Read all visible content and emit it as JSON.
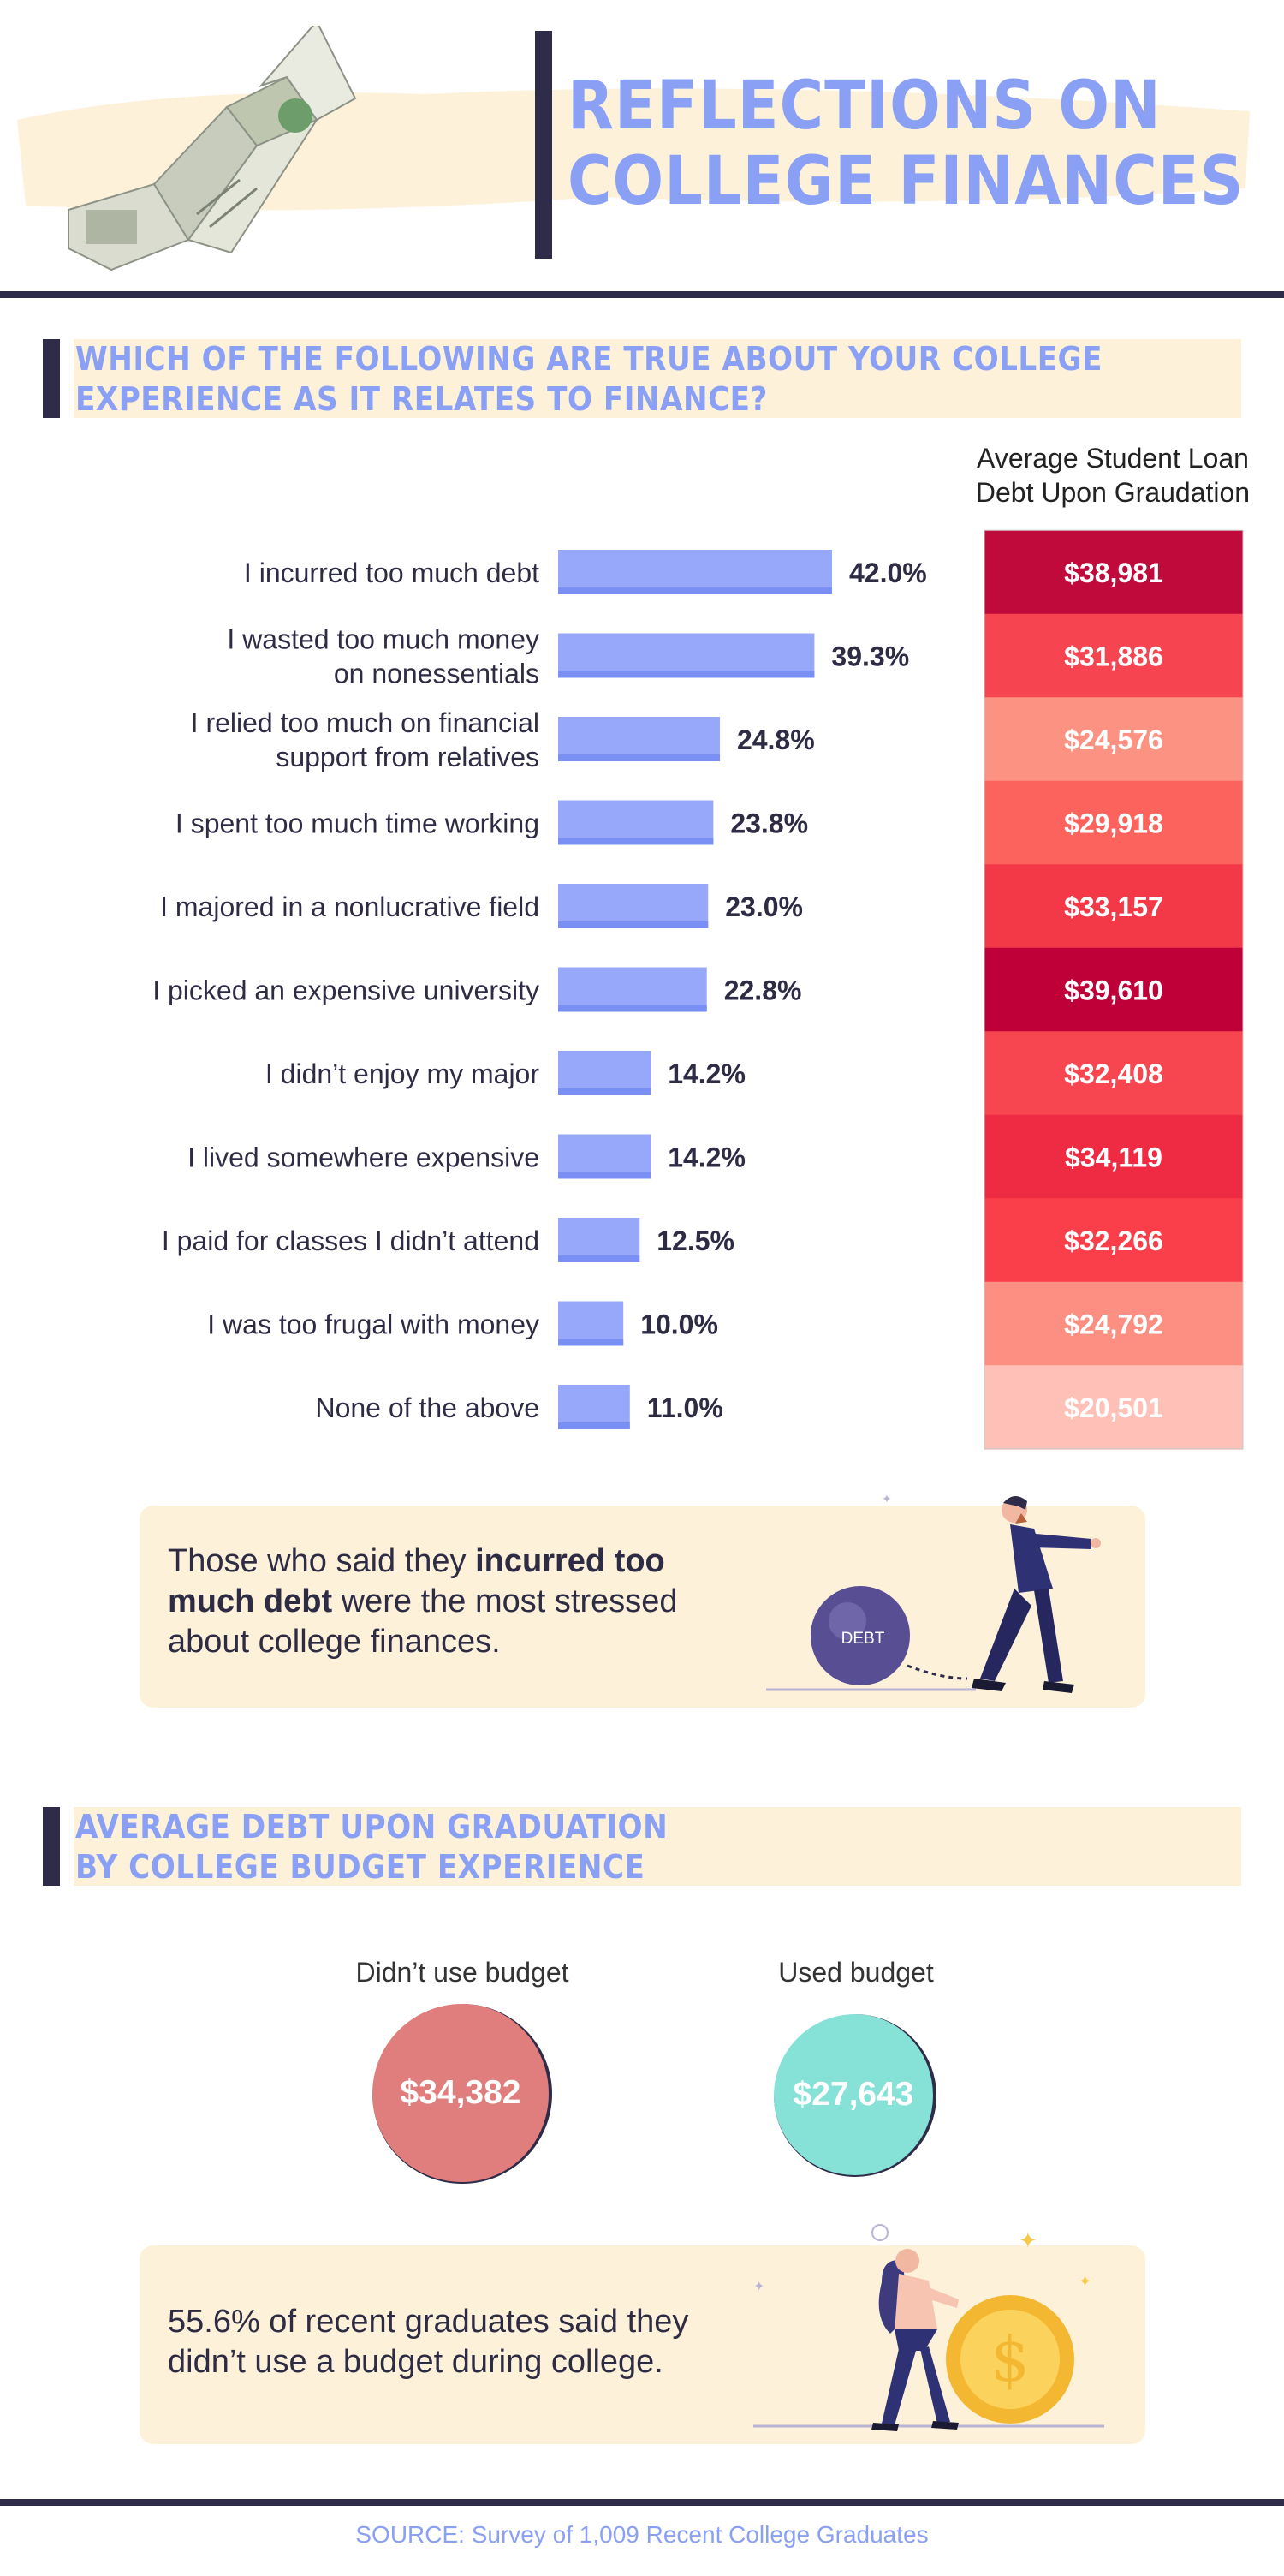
{
  "header": {
    "title_line1": "Reflections on",
    "title_line2": "College Finances"
  },
  "section1": {
    "heading_line1": "Which of the following are true about your college",
    "heading_line2": "experience as it relates to finance?",
    "debt_column_title_line1": "Average Student Loan",
    "debt_column_title_line2": "Debt Upon Graudation"
  },
  "chart_data": [
    {
      "type": "bar",
      "orientation": "horizontal",
      "categories": [
        [
          "I incurred too much debt"
        ],
        [
          "I wasted too much money",
          "on nonessentials"
        ],
        [
          "I relied too much on financial",
          "support from relatives"
        ],
        [
          "I spent too much time working"
        ],
        [
          "I majored in a nonlucrative field"
        ],
        [
          "I picked an expensive university"
        ],
        [
          "I didn’t enjoy my major"
        ],
        [
          "I lived somewhere expensive"
        ],
        [
          "I paid for classes I didn’t attend"
        ],
        [
          "I was too frugal with money"
        ],
        [
          "None of the above"
        ]
      ],
      "values": [
        42.0,
        39.3,
        24.8,
        23.8,
        23.0,
        22.8,
        14.2,
        14.2,
        12.5,
        10.0,
        11.0
      ],
      "value_labels": [
        "42.0%",
        "39.3%",
        "24.8%",
        "23.8%",
        "23.0%",
        "22.8%",
        "14.2%",
        "14.2%",
        "12.5%",
        "10.0%",
        "11.0%"
      ],
      "debt_values": [
        38981,
        31886,
        24576,
        29918,
        33157,
        39610,
        32408,
        34119,
        32266,
        24792,
        20501
      ],
      "debt_labels": [
        "$38,981",
        "$31,886",
        "$24,576",
        "$29,918",
        "$33,157",
        "$39,610",
        "$32,408",
        "$34,119",
        "$32,266",
        "$24,792",
        "$20,501"
      ],
      "debt_colors": [
        "#c00a3c",
        "#f64451",
        "#fc9281",
        "#fb635c",
        "#f33848",
        "#bf0038",
        "#f84650",
        "#ee2b43",
        "#fb3f4a",
        "#fc8f82",
        "#ffc1b7"
      ],
      "colors": {
        "bar": "#97a8fb",
        "bar_shade": "#7a8ff4"
      },
      "xlim": [
        0,
        42
      ]
    },
    {
      "type": "bubble",
      "categories": [
        "Didn’t use budget",
        "Used budget"
      ],
      "values": [
        34382,
        27643
      ],
      "value_labels": [
        "$34,382",
        "$27,643"
      ],
      "colors": [
        "#e07d7d",
        "#86e1d7"
      ]
    }
  ],
  "callout1": {
    "line1_pre": "Those who said they ",
    "line1_bold": "incurred too",
    "line2_bold": "much debt",
    "line2_post": " were the most stressed",
    "line3": "about college finances.",
    "ball_label": "DEBT"
  },
  "section2": {
    "heading_line1": "Average debt upon graduation",
    "heading_line2": "by college budget experience"
  },
  "callout2": {
    "line1": "55.6% of recent graduates said they",
    "line2": "didn’t use a budget during college."
  },
  "footer": {
    "source": "SOURCE: Survey of 1,009 Recent College Graduates"
  }
}
